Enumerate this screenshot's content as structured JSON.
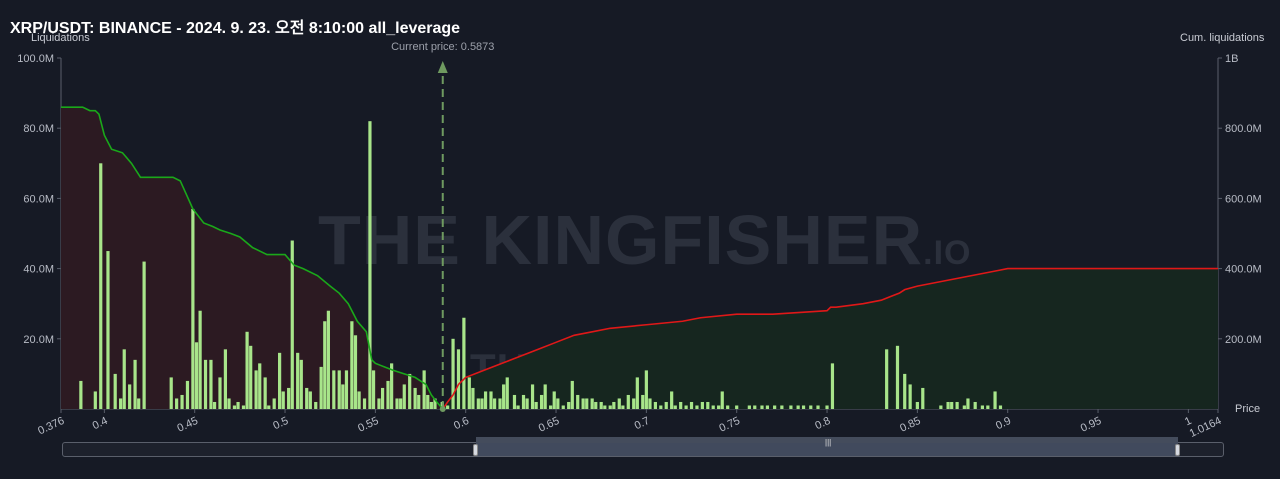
{
  "title": "XRP/USDT: BINANCE - 2024. 9. 23. 오전 8:10:00 all_leverage",
  "left_axis_title": "Liquidations",
  "right_axis_title": "Cum. liquidations",
  "price_label": "Price",
  "current_price_label": "Current price: 0.5873",
  "watermark": "THE KINGFISHER",
  "watermark_suffix": ".IO",
  "colors": {
    "background": "#161a25",
    "bars": "#a8e58a",
    "cum_short": "#1aa81a",
    "cum_long": "#e01818",
    "fill_short": "#2c1a22",
    "fill_long": "#16261f",
    "current_price": "#6f9a60"
  },
  "chart_data": {
    "type": "bar",
    "x_range": [
      0.376,
      1.0164
    ],
    "y_left_range": [
      0,
      100
    ],
    "y_left_unit": "M",
    "y_right_range": [
      0,
      1000
    ],
    "y_right_unit": "M",
    "y_left_ticks": [
      "20.0M",
      "40.0M",
      "60.0M",
      "80.0M",
      "100.0M"
    ],
    "y_right_ticks": [
      "200.0M",
      "400.0M",
      "600.0M",
      "800.0M",
      "1B"
    ],
    "x_tick_labels": [
      "0.376",
      "0.4",
      "0.45",
      "0.5",
      "0.55",
      "0.6",
      "0.65",
      "0.7",
      "0.75",
      "0.8",
      "0.85",
      "0.9",
      "0.95",
      "1",
      "1.0164"
    ],
    "x_tick_values": [
      0.376,
      0.4,
      0.45,
      0.5,
      0.55,
      0.6,
      0.65,
      0.7,
      0.75,
      0.8,
      0.85,
      0.9,
      0.95,
      1.0,
      1.0164
    ],
    "current_price": 0.5873,
    "bars": [
      [
        0.387,
        8
      ],
      [
        0.395,
        5
      ],
      [
        0.398,
        70
      ],
      [
        0.402,
        45
      ],
      [
        0.406,
        10
      ],
      [
        0.409,
        3
      ],
      [
        0.411,
        17
      ],
      [
        0.414,
        7
      ],
      [
        0.417,
        14
      ],
      [
        0.419,
        3
      ],
      [
        0.422,
        42
      ],
      [
        0.437,
        9
      ],
      [
        0.44,
        3
      ],
      [
        0.443,
        4
      ],
      [
        0.446,
        8
      ],
      [
        0.449,
        57
      ],
      [
        0.451,
        19
      ],
      [
        0.453,
        28
      ],
      [
        0.456,
        14
      ],
      [
        0.459,
        14
      ],
      [
        0.461,
        2
      ],
      [
        0.464,
        9
      ],
      [
        0.467,
        17
      ],
      [
        0.469,
        3
      ],
      [
        0.472,
        1
      ],
      [
        0.474,
        2
      ],
      [
        0.477,
        1
      ],
      [
        0.479,
        22
      ],
      [
        0.481,
        18
      ],
      [
        0.484,
        11
      ],
      [
        0.486,
        13
      ],
      [
        0.489,
        9
      ],
      [
        0.491,
        1
      ],
      [
        0.494,
        3
      ],
      [
        0.497,
        16
      ],
      [
        0.499,
        5
      ],
      [
        0.502,
        6
      ],
      [
        0.504,
        48
      ],
      [
        0.507,
        16
      ],
      [
        0.509,
        14
      ],
      [
        0.512,
        6
      ],
      [
        0.514,
        5
      ],
      [
        0.517,
        2
      ],
      [
        0.52,
        12
      ],
      [
        0.522,
        25
      ],
      [
        0.524,
        28
      ],
      [
        0.527,
        11
      ],
      [
        0.53,
        11
      ],
      [
        0.532,
        7
      ],
      [
        0.534,
        11
      ],
      [
        0.537,
        25
      ],
      [
        0.539,
        21
      ],
      [
        0.541,
        5
      ],
      [
        0.544,
        3
      ],
      [
        0.547,
        82
      ],
      [
        0.549,
        11
      ],
      [
        0.552,
        3
      ],
      [
        0.554,
        6
      ],
      [
        0.557,
        8
      ],
      [
        0.559,
        13
      ],
      [
        0.562,
        3
      ],
      [
        0.564,
        3
      ],
      [
        0.566,
        7
      ],
      [
        0.569,
        10
      ],
      [
        0.572,
        6
      ],
      [
        0.574,
        4
      ],
      [
        0.577,
        11
      ],
      [
        0.579,
        4
      ],
      [
        0.581,
        2
      ],
      [
        0.583,
        3
      ],
      [
        0.587,
        2
      ],
      [
        0.59,
        1
      ],
      [
        0.593,
        20
      ],
      [
        0.596,
        17
      ],
      [
        0.599,
        26
      ],
      [
        0.602,
        9
      ],
      [
        0.604,
        6
      ],
      [
        0.607,
        3
      ],
      [
        0.609,
        3
      ],
      [
        0.611,
        5
      ],
      [
        0.614,
        5
      ],
      [
        0.616,
        3
      ],
      [
        0.619,
        3
      ],
      [
        0.621,
        7
      ],
      [
        0.623,
        9
      ],
      [
        0.627,
        4
      ],
      [
        0.629,
        1
      ],
      [
        0.632,
        4
      ],
      [
        0.634,
        3
      ],
      [
        0.637,
        7
      ],
      [
        0.639,
        2
      ],
      [
        0.642,
        4
      ],
      [
        0.644,
        7
      ],
      [
        0.647,
        1
      ],
      [
        0.649,
        5
      ],
      [
        0.651,
        3
      ],
      [
        0.654,
        1
      ],
      [
        0.657,
        2
      ],
      [
        0.659,
        8
      ],
      [
        0.662,
        4
      ],
      [
        0.665,
        3
      ],
      [
        0.667,
        3
      ],
      [
        0.67,
        3
      ],
      [
        0.672,
        2
      ],
      [
        0.675,
        2
      ],
      [
        0.677,
        1
      ],
      [
        0.68,
        1
      ],
      [
        0.682,
        2
      ],
      [
        0.685,
        3
      ],
      [
        0.687,
        1
      ],
      [
        0.69,
        4
      ],
      [
        0.693,
        3
      ],
      [
        0.695,
        9
      ],
      [
        0.698,
        4
      ],
      [
        0.7,
        11
      ],
      [
        0.702,
        3
      ],
      [
        0.705,
        2
      ],
      [
        0.708,
        1
      ],
      [
        0.711,
        2
      ],
      [
        0.714,
        5
      ],
      [
        0.716,
        1
      ],
      [
        0.719,
        2
      ],
      [
        0.722,
        1
      ],
      [
        0.725,
        2
      ],
      [
        0.728,
        1
      ],
      [
        0.731,
        2
      ],
      [
        0.734,
        2
      ],
      [
        0.737,
        1
      ],
      [
        0.74,
        1
      ],
      [
        0.742,
        5
      ],
      [
        0.745,
        1
      ],
      [
        0.75,
        1
      ],
      [
        0.757,
        1
      ],
      [
        0.76,
        1
      ],
      [
        0.764,
        1
      ],
      [
        0.767,
        1
      ],
      [
        0.771,
        1
      ],
      [
        0.775,
        1
      ],
      [
        0.78,
        1
      ],
      [
        0.784,
        1
      ],
      [
        0.787,
        1
      ],
      [
        0.791,
        1
      ],
      [
        0.795,
        1
      ],
      [
        0.8,
        1
      ],
      [
        0.803,
        13
      ],
      [
        0.833,
        17
      ],
      [
        0.839,
        18
      ],
      [
        0.843,
        10
      ],
      [
        0.846,
        7
      ],
      [
        0.85,
        2
      ],
      [
        0.853,
        6
      ],
      [
        0.863,
        1
      ],
      [
        0.867,
        2
      ],
      [
        0.869,
        2
      ],
      [
        0.872,
        2
      ],
      [
        0.876,
        1
      ],
      [
        0.878,
        3
      ],
      [
        0.882,
        2
      ],
      [
        0.886,
        1
      ],
      [
        0.889,
        1
      ],
      [
        0.893,
        5
      ],
      [
        0.896,
        1
      ]
    ],
    "cum_short_series": {
      "x": [
        0.376,
        0.388,
        0.392,
        0.395,
        0.397,
        0.4,
        0.404,
        0.41,
        0.415,
        0.42,
        0.438,
        0.442,
        0.449,
        0.455,
        0.46,
        0.464,
        0.47,
        0.475,
        0.482,
        0.49,
        0.496,
        0.5,
        0.505,
        0.51,
        0.518,
        0.525,
        0.53,
        0.535,
        0.54,
        0.545,
        0.548,
        0.55,
        0.555,
        0.56,
        0.566,
        0.572,
        0.578,
        0.581,
        0.584,
        0.5873
      ],
      "y": [
        860,
        860,
        850,
        850,
        840,
        780,
        740,
        730,
        700,
        660,
        660,
        650,
        570,
        530,
        520,
        510,
        500,
        490,
        460,
        440,
        440,
        440,
        410,
        400,
        380,
        350,
        330,
        300,
        250,
        220,
        140,
        130,
        120,
        110,
        100,
        90,
        70,
        40,
        20,
        0
      ]
    },
    "cum_long_series": {
      "x": [
        0.5873,
        0.59,
        0.593,
        0.596,
        0.6,
        0.61,
        0.62,
        0.63,
        0.64,
        0.65,
        0.66,
        0.67,
        0.68,
        0.7,
        0.72,
        0.73,
        0.75,
        0.77,
        0.8,
        0.802,
        0.805,
        0.82,
        0.83,
        0.835,
        0.84,
        0.843,
        0.85,
        0.86,
        0.87,
        0.88,
        0.89,
        0.895,
        0.9,
        0.95,
        1.0,
        1.0164
      ],
      "y": [
        0,
        20,
        40,
        70,
        90,
        110,
        130,
        150,
        170,
        190,
        210,
        220,
        230,
        240,
        250,
        260,
        270,
        270,
        280,
        290,
        290,
        300,
        310,
        320,
        330,
        340,
        350,
        360,
        370,
        380,
        390,
        395,
        400,
        400,
        400,
        400
      ]
    }
  }
}
